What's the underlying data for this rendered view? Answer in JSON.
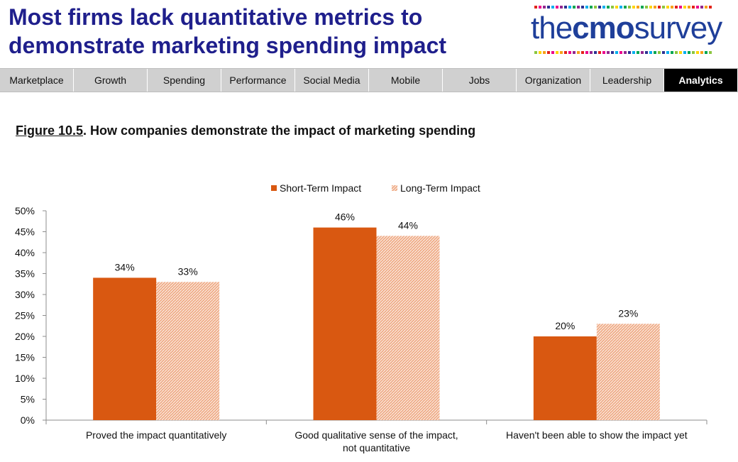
{
  "header": {
    "title": "Most firms lack quantitative metrics to demonstrate marketing spending impact"
  },
  "logo": {
    "the": "the",
    "cmo": "cmo",
    "survey": "survey",
    "dot_colors": [
      "#e2231a",
      "#f7a11a",
      "#ffd400",
      "#8cc63f",
      "#00a651",
      "#00aeef",
      "#2e3192",
      "#92278f",
      "#ec008c"
    ]
  },
  "nav": {
    "tabs": [
      "Marketplace",
      "Growth",
      "Spending",
      "Performance",
      "Social Media",
      "Mobile",
      "Jobs",
      "Organization",
      "Leadership",
      "Analytics"
    ],
    "active": "Analytics"
  },
  "figure": {
    "number": "Figure 10.5",
    "title": ". How companies demonstrate the impact of marketing spending"
  },
  "colors": {
    "short_term": "#d95811",
    "long_term": "#f0ae8a",
    "long_term_hatch": "#ffffff",
    "nav_bg": "#d0d0d0",
    "title": "#1f1f8c"
  },
  "chart_data": {
    "type": "bar",
    "categories": [
      [
        "Proved the impact quantitatively"
      ],
      [
        "Good qualitative sense of the impact,",
        "not quantitative"
      ],
      [
        "Haven't been able to show the impact yet"
      ]
    ],
    "series": [
      {
        "name": "Short-Term Impact",
        "values": [
          34,
          46,
          20
        ],
        "labels": [
          "34%",
          "46%",
          "20%"
        ]
      },
      {
        "name": "Long-Term Impact",
        "values": [
          33,
          44,
          23
        ],
        "labels": [
          "33%",
          "44%",
          "23%"
        ]
      }
    ],
    "ylim": [
      0,
      50
    ],
    "yticks": [
      "0%",
      "5%",
      "10%",
      "15%",
      "20%",
      "25%",
      "30%",
      "35%",
      "40%",
      "45%",
      "50%"
    ],
    "legend": "top-center",
    "grid": false
  }
}
